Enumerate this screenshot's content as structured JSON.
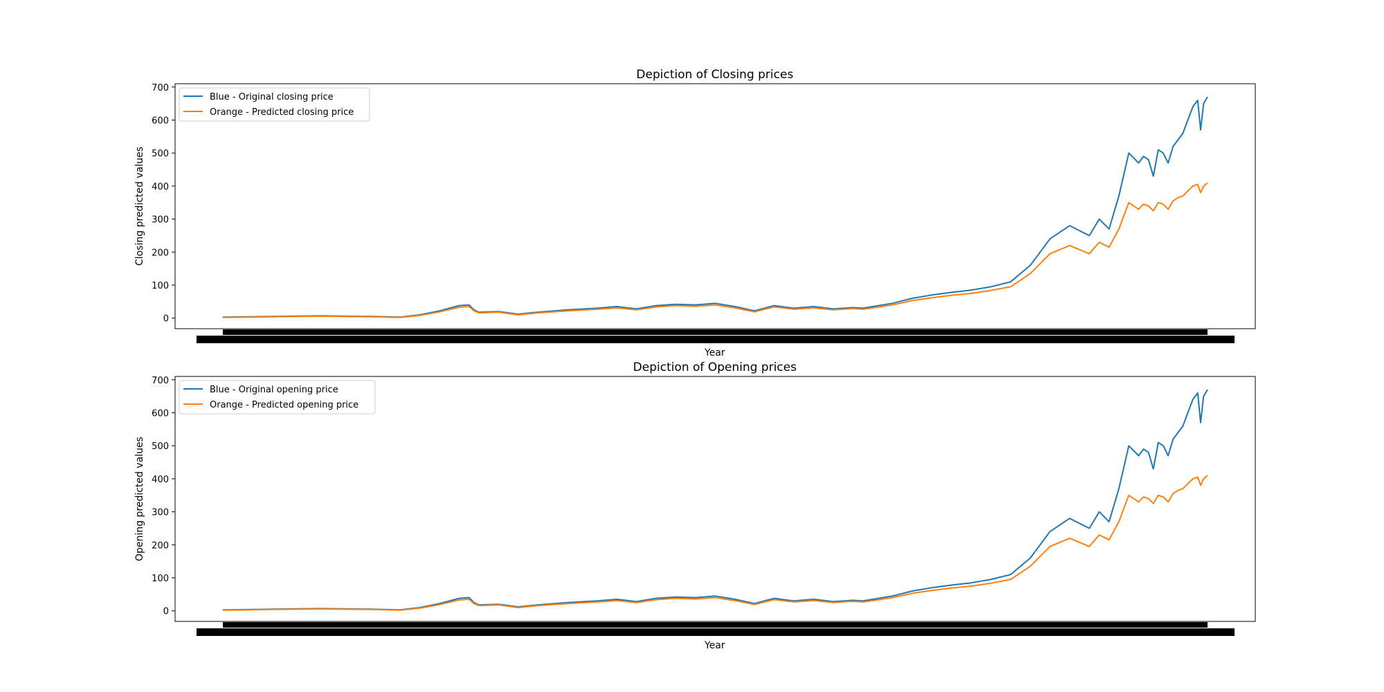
{
  "chart_data": [
    {
      "type": "line",
      "title": "Depiction of Closing prices",
      "xlabel": "Year",
      "ylabel": "Closing predicted values",
      "ylim": [
        -32,
        710
      ],
      "yticks": [
        0,
        100,
        200,
        300,
        400,
        500,
        600,
        700
      ],
      "xticks_note": "x tick labels overlap into a solid black band (unreadable)",
      "grid": false,
      "legend_position": "upper-left",
      "series": [
        {
          "name": "Blue - Original closing price",
          "color": "#1f77b4",
          "x": [
            0,
            0.05,
            0.1,
            0.15,
            0.18,
            0.2,
            0.22,
            0.24,
            0.25,
            0.255,
            0.26,
            0.28,
            0.3,
            0.32,
            0.35,
            0.38,
            0.4,
            0.42,
            0.44,
            0.46,
            0.48,
            0.5,
            0.52,
            0.54,
            0.55,
            0.56,
            0.58,
            0.6,
            0.62,
            0.64,
            0.65,
            0.66,
            0.68,
            0.7,
            0.72,
            0.74,
            0.76,
            0.78,
            0.8,
            0.82,
            0.84,
            0.86,
            0.88,
            0.89,
            0.9,
            0.91,
            0.92,
            0.93,
            0.935,
            0.94,
            0.945,
            0.95,
            0.955,
            0.96,
            0.965,
            0.97,
            0.975,
            0.98,
            0.985,
            0.99,
            0.993,
            0.996,
            1.0
          ],
          "y": [
            3,
            5,
            7,
            5,
            3,
            10,
            22,
            38,
            40,
            25,
            18,
            20,
            12,
            18,
            25,
            30,
            35,
            28,
            38,
            42,
            40,
            45,
            35,
            22,
            30,
            38,
            30,
            35,
            28,
            32,
            30,
            35,
            45,
            60,
            70,
            78,
            85,
            95,
            110,
            160,
            240,
            280,
            250,
            300,
            270,
            370,
            500,
            470,
            490,
            480,
            430,
            510,
            500,
            470,
            520,
            540,
            560,
            600,
            640,
            660,
            570,
            650,
            670
          ]
        },
        {
          "name": "Orange - Predicted closing price",
          "color": "#ff7f0e",
          "x": [
            0,
            0.05,
            0.1,
            0.15,
            0.18,
            0.2,
            0.22,
            0.24,
            0.25,
            0.255,
            0.26,
            0.28,
            0.3,
            0.32,
            0.35,
            0.38,
            0.4,
            0.42,
            0.44,
            0.46,
            0.48,
            0.5,
            0.52,
            0.54,
            0.55,
            0.56,
            0.58,
            0.6,
            0.62,
            0.64,
            0.65,
            0.66,
            0.68,
            0.7,
            0.72,
            0.74,
            0.76,
            0.78,
            0.8,
            0.82,
            0.84,
            0.86,
            0.88,
            0.89,
            0.9,
            0.91,
            0.92,
            0.93,
            0.935,
            0.94,
            0.945,
            0.95,
            0.955,
            0.96,
            0.965,
            0.97,
            0.975,
            0.98,
            0.985,
            0.99,
            0.993,
            0.996,
            1.0
          ],
          "y": [
            2,
            4,
            6,
            4,
            2,
            8,
            19,
            33,
            35,
            22,
            16,
            18,
            10,
            16,
            22,
            27,
            31,
            25,
            34,
            38,
            36,
            40,
            31,
            19,
            27,
            34,
            27,
            31,
            25,
            29,
            27,
            31,
            40,
            53,
            62,
            69,
            75,
            84,
            95,
            135,
            195,
            220,
            195,
            230,
            215,
            270,
            350,
            330,
            345,
            340,
            325,
            350,
            345,
            330,
            355,
            365,
            370,
            385,
            400,
            405,
            380,
            400,
            410
          ]
        }
      ]
    },
    {
      "type": "line",
      "title": "Depiction of Opening prices",
      "xlabel": "Year",
      "ylabel": "Opening predicted values",
      "ylim": [
        -32,
        710
      ],
      "yticks": [
        0,
        100,
        200,
        300,
        400,
        500,
        600,
        700
      ],
      "xticks_note": "x tick labels overlap into a solid black band (unreadable)",
      "grid": false,
      "legend_position": "upper-left",
      "series": [
        {
          "name": "Blue - Original opening price",
          "color": "#1f77b4",
          "x": [
            0,
            0.05,
            0.1,
            0.15,
            0.18,
            0.2,
            0.22,
            0.24,
            0.25,
            0.255,
            0.26,
            0.28,
            0.3,
            0.32,
            0.35,
            0.38,
            0.4,
            0.42,
            0.44,
            0.46,
            0.48,
            0.5,
            0.52,
            0.54,
            0.55,
            0.56,
            0.58,
            0.6,
            0.62,
            0.64,
            0.65,
            0.66,
            0.68,
            0.7,
            0.72,
            0.74,
            0.76,
            0.78,
            0.8,
            0.82,
            0.84,
            0.86,
            0.88,
            0.89,
            0.9,
            0.91,
            0.92,
            0.93,
            0.935,
            0.94,
            0.945,
            0.95,
            0.955,
            0.96,
            0.965,
            0.97,
            0.975,
            0.98,
            0.985,
            0.99,
            0.993,
            0.996,
            1.0
          ],
          "y": [
            3,
            5,
            7,
            5,
            3,
            10,
            22,
            38,
            40,
            25,
            18,
            20,
            12,
            18,
            25,
            30,
            35,
            28,
            38,
            42,
            40,
            45,
            35,
            22,
            30,
            38,
            30,
            35,
            28,
            32,
            30,
            35,
            45,
            60,
            70,
            78,
            85,
            95,
            110,
            160,
            240,
            280,
            250,
            300,
            270,
            370,
            500,
            470,
            490,
            480,
            430,
            510,
            500,
            470,
            520,
            540,
            560,
            600,
            640,
            660,
            570,
            650,
            670
          ]
        },
        {
          "name": "Orange - Predicted opening price",
          "color": "#ff7f0e",
          "x": [
            0,
            0.05,
            0.1,
            0.15,
            0.18,
            0.2,
            0.22,
            0.24,
            0.25,
            0.255,
            0.26,
            0.28,
            0.3,
            0.32,
            0.35,
            0.38,
            0.4,
            0.42,
            0.44,
            0.46,
            0.48,
            0.5,
            0.52,
            0.54,
            0.55,
            0.56,
            0.58,
            0.6,
            0.62,
            0.64,
            0.65,
            0.66,
            0.68,
            0.7,
            0.72,
            0.74,
            0.76,
            0.78,
            0.8,
            0.82,
            0.84,
            0.86,
            0.88,
            0.89,
            0.9,
            0.91,
            0.92,
            0.93,
            0.935,
            0.94,
            0.945,
            0.95,
            0.955,
            0.96,
            0.965,
            0.97,
            0.975,
            0.98,
            0.985,
            0.99,
            0.993,
            0.996,
            1.0
          ],
          "y": [
            2,
            4,
            6,
            4,
            2,
            8,
            19,
            33,
            35,
            22,
            16,
            18,
            10,
            16,
            22,
            27,
            31,
            25,
            34,
            38,
            36,
            40,
            31,
            19,
            27,
            34,
            27,
            31,
            25,
            29,
            27,
            31,
            40,
            53,
            62,
            69,
            75,
            84,
            95,
            135,
            195,
            220,
            195,
            230,
            215,
            270,
            350,
            330,
            345,
            340,
            325,
            350,
            345,
            330,
            355,
            365,
            370,
            385,
            400,
            405,
            380,
            400,
            410
          ]
        }
      ]
    }
  ]
}
